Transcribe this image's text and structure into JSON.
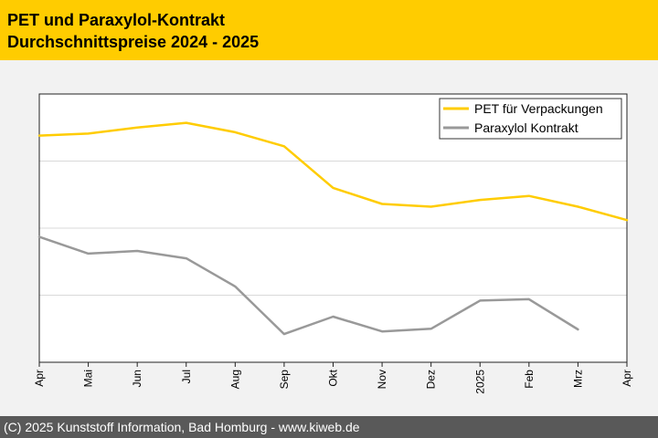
{
  "header": {
    "title_line1": "PET und Paraxylol-Kontrakt",
    "title_line2": "Durchschnittspreise 2024 - 2025"
  },
  "footer": {
    "copyright": "(C) 2025 Kunststoff Information, Bad Homburg - www.kiweb.de"
  },
  "colors": {
    "header_bg": "#ffcc00",
    "pet_line": "#ffcc00",
    "paraxylol_line": "#999999",
    "footer_bg": "#595959"
  },
  "chart_data": {
    "type": "line",
    "title": "PET und Paraxylol-Kontrakt Durchschnittspreise 2024 - 2025",
    "xlabel": "",
    "ylabel": "",
    "categories": [
      "Apr",
      "Mai",
      "Jun",
      "Jul",
      "Aug",
      "Sep",
      "Okt",
      "Nov",
      "Dez",
      "2025",
      "Feb",
      "Mrz",
      "Apr"
    ],
    "ylim": [
      0,
      4
    ],
    "grid": true,
    "legend_position": "top-right",
    "series": [
      {
        "name": "PET für Verpackungen",
        "color": "#ffcc00",
        "values": [
          3.38,
          3.41,
          3.5,
          3.57,
          3.43,
          3.22,
          2.6,
          2.36,
          2.32,
          2.42,
          2.48,
          2.32,
          2.12
        ]
      },
      {
        "name": "Paraxylol Kontrakt",
        "color": "#999999",
        "values": [
          1.87,
          1.62,
          1.66,
          1.55,
          1.13,
          0.42,
          0.68,
          0.46,
          0.5,
          0.92,
          0.94,
          0.49,
          null
        ]
      }
    ]
  }
}
